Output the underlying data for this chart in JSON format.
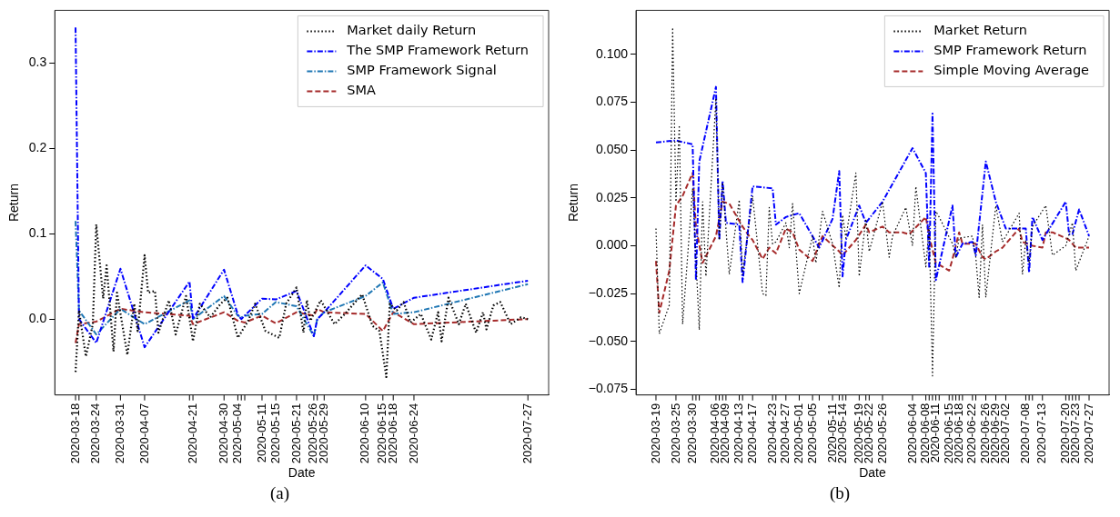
{
  "chart_data": [
    {
      "type": "line",
      "xlabel": "Date",
      "ylabel": "Return",
      "legend": "top right",
      "grid": false,
      "annotations": [
        "(a)"
      ],
      "xlim": [
        "2020-03-12",
        "2020-08-02"
      ],
      "ylim": [
        -0.089,
        0.362
      ],
      "yticks": [
        {
          "value": 0,
          "label": "0.0"
        },
        {
          "value": 0.1,
          "label": "0.1"
        },
        {
          "value": 0.2,
          "label": "0.2"
        },
        {
          "value": 0.3,
          "label": "0.3"
        }
      ],
      "xticks": [
        "2020-03-18",
        {
          "value": "2020-03-19",
          "label": null
        },
        "2020-03-24",
        "2020-03-31",
        "2020-04-07",
        {
          "value": "2020-04-20",
          "label": null
        },
        "2020-04-21",
        "2020-04-30",
        "2020-05-04",
        {
          "value": "2020-05-05",
          "label": null
        },
        {
          "value": "2020-05-06",
          "label": null
        },
        "2020-05-11",
        "2020-05-15",
        "2020-05-21",
        "2020-05-26",
        {
          "value": "2020-05-27",
          "label": null
        },
        "2020-05-29",
        "2020-06-10",
        "2020-06-15",
        "2020-06-18",
        "2020-06-24",
        "2020-07-27"
      ],
      "series": [
        {
          "name": "Market daily Return",
          "color": "#000000",
          "line_style": "dotted",
          "x": [
            "2020-03-18",
            "2020-03-19",
            "2020-03-21",
            "2020-03-23",
            "2020-03-24",
            "2020-03-26",
            "2020-03-27",
            "2020-03-29",
            "2020-03-30",
            "2020-04-02",
            "2020-04-04",
            "2020-04-05",
            "2020-04-07",
            "2020-04-08",
            "2020-04-10",
            "2020-04-11",
            "2020-04-14",
            "2020-04-16",
            "2020-04-19",
            "2020-04-21",
            "2020-04-23",
            "2020-04-26",
            "2020-04-29",
            "2020-05-01",
            "2020-05-04",
            "2020-05-07",
            "2020-05-09",
            "2020-05-12",
            "2020-05-16",
            "2020-05-18",
            "2020-05-21",
            "2020-05-23",
            "2020-05-24",
            "2020-05-25",
            "2020-05-28",
            "2020-05-30",
            "2020-06-01",
            "2020-06-04",
            "2020-06-07",
            "2020-06-09",
            "2020-06-12",
            "2020-06-14",
            "2020-06-16",
            "2020-06-17",
            "2020-06-19",
            "2020-06-21",
            "2020-06-23",
            "2020-06-26",
            "2020-06-29",
            "2020-07-01",
            "2020-07-02",
            "2020-07-04",
            "2020-07-07",
            "2020-07-09",
            "2020-07-12",
            "2020-07-14",
            "2020-07-15",
            "2020-07-17",
            "2020-07-19",
            "2020-07-22",
            "2020-07-25",
            "2020-07-27"
          ],
          "values": [
            -0.062,
            0.01,
            -0.044,
            -0.006,
            0.111,
            0.024,
            0.063,
            -0.038,
            0.031,
            -0.042,
            0.018,
            -0.014,
            0.075,
            0.031,
            0.033,
            -0.016,
            0.022,
            -0.018,
            0.027,
            -0.026,
            0.018,
            0.002,
            0.018,
            0.025,
            -0.022,
            -0.002,
            0.018,
            -0.014,
            -0.022,
            0.018,
            0.037,
            -0.016,
            0.022,
            -0.002,
            0.022,
            0.008,
            -0.006,
            0.006,
            0.02,
            0.029,
            -0.008,
            -0.014,
            -0.068,
            0.018,
            0.01,
            0.02,
            -0.004,
            0.006,
            -0.024,
            0.008,
            -0.026,
            0.025,
            -0.006,
            0.018,
            -0.016,
            0.008,
            -0.012,
            0.016,
            0.02,
            -0.006,
            0.002,
            0.0
          ]
        },
        {
          "name": "The SMP Framework Return",
          "color": "#0000ff",
          "line_style": "dashdot",
          "x": [
            "2020-03-18",
            "2020-03-19",
            "2020-03-24",
            "2020-03-31",
            "2020-04-07",
            "2020-04-20",
            "2020-04-21",
            "2020-04-30",
            "2020-05-04",
            "2020-05-05",
            "2020-05-06",
            "2020-05-11",
            "2020-05-15",
            "2020-05-21",
            "2020-05-26",
            "2020-05-27",
            "2020-05-29",
            "2020-06-10",
            "2020-06-15",
            "2020-06-18",
            "2020-06-24",
            "2020-07-27"
          ],
          "values": [
            0.342,
            0.0,
            -0.028,
            0.059,
            -0.033,
            0.044,
            0.0,
            0.058,
            0.005,
            0.0,
            0.004,
            0.024,
            0.023,
            0.033,
            -0.02,
            0.0,
            0.008,
            0.063,
            0.047,
            0.012,
            0.025,
            0.045
          ]
        },
        {
          "name": "SMP Framework Signal",
          "color": "#1f77b4",
          "line_style": "dashdot",
          "x": [
            "2020-03-18",
            "2020-03-19",
            "2020-03-24",
            "2020-03-31",
            "2020-04-07",
            "2020-04-20",
            "2020-04-21",
            "2020-04-30",
            "2020-05-04",
            "2020-05-05",
            "2020-05-06",
            "2020-05-11",
            "2020-05-15",
            "2020-05-21",
            "2020-05-26",
            "2020-05-27",
            "2020-05-29",
            "2020-06-10",
            "2020-06-15",
            "2020-06-18",
            "2020-06-24",
            "2020-07-27"
          ],
          "values": [
            0.115,
            0.01,
            -0.018,
            0.012,
            -0.006,
            0.022,
            0.0,
            0.027,
            0.004,
            0.002,
            0.004,
            0.006,
            0.02,
            0.015,
            -0.02,
            0.0,
            0.008,
            0.027,
            0.043,
            0.006,
            0.008,
            0.041
          ]
        },
        {
          "name": "SMA",
          "color": "#a52a2a",
          "line_style": "dashed",
          "x": [
            "2020-03-18",
            "2020-03-19",
            "2020-03-24",
            "2020-03-31",
            "2020-04-07",
            "2020-04-20",
            "2020-04-21",
            "2020-04-30",
            "2020-05-04",
            "2020-05-06",
            "2020-05-11",
            "2020-05-15",
            "2020-05-21",
            "2020-05-26",
            "2020-05-27",
            "2020-05-29",
            "2020-06-10",
            "2020-06-15",
            "2020-06-18",
            "2020-06-24",
            "2020-07-27"
          ],
          "values": [
            -0.028,
            -0.006,
            -0.003,
            0.012,
            0.008,
            0.004,
            -0.006,
            0.008,
            -0.002,
            -0.004,
            0.004,
            -0.005,
            0.008,
            0.004,
            0.012,
            0.008,
            0.006,
            -0.014,
            0.008,
            -0.006,
            0.0
          ]
        }
      ]
    },
    {
      "type": "line",
      "xlabel": "Date",
      "ylabel": "Return",
      "legend": "top right",
      "grid": false,
      "annotations": [
        "(b)"
      ],
      "xlim": [
        "2020-03-13",
        "2020-08-02"
      ],
      "ylim": [
        -0.078,
        0.123
      ],
      "yticks": [
        {
          "value": -0.075,
          "label": "−0.075"
        },
        {
          "value": -0.05,
          "label": "−0.050"
        },
        {
          "value": -0.025,
          "label": "−0.025"
        },
        {
          "value": 0,
          "label": "0.000"
        },
        {
          "value": 0.025,
          "label": "0.025"
        },
        {
          "value": 0.05,
          "label": "0.050"
        },
        {
          "value": 0.075,
          "label": "0.075"
        },
        {
          "value": 0.1,
          "label": "0.100"
        }
      ],
      "xticks": [
        "2020-03-19",
        "2020-03-25",
        "2020-03-30",
        {
          "value": "2020-03-31",
          "label": null
        },
        {
          "value": "2020-04-01",
          "label": null
        },
        "2020-04-06",
        {
          "value": "2020-04-07",
          "label": null
        },
        {
          "value": "2020-04-08",
          "label": null
        },
        "2020-04-09",
        "2020-04-13",
        {
          "value": "2020-04-14",
          "label": null
        },
        "2020-04-17",
        "2020-04-23",
        {
          "value": "2020-04-24",
          "label": null
        },
        "2020-04-27",
        "2020-05-01",
        "2020-05-05",
        {
          "value": "2020-05-07",
          "label": null
        },
        "2020-05-11",
        {
          "value": "2020-05-13",
          "label": null
        },
        "2020-05-14",
        {
          "value": "2020-05-15",
          "label": null
        },
        "2020-05-19",
        {
          "value": "2020-05-21",
          "label": null
        },
        "2020-05-22",
        "2020-05-26",
        "2020-06-04",
        "2020-06-08",
        {
          "value": "2020-06-09",
          "label": null
        },
        {
          "value": "2020-06-10",
          "label": null
        },
        "2020-06-11",
        {
          "value": "2020-06-12",
          "label": null
        },
        "2020-06-15",
        {
          "value": "2020-06-16",
          "label": null
        },
        {
          "value": "2020-06-17",
          "label": null
        },
        "2020-06-18",
        {
          "value": "2020-06-19",
          "label": null
        },
        "2020-06-22",
        {
          "value": "2020-06-23",
          "label": null
        },
        "2020-06-26",
        "2020-06-29",
        "2020-07-02",
        "2020-07-08",
        {
          "value": "2020-07-09",
          "label": null
        },
        {
          "value": "2020-07-10",
          "label": null
        },
        "2020-07-13",
        "2020-07-20",
        {
          "value": "2020-07-21",
          "label": null
        },
        {
          "value": "2020-07-22",
          "label": null
        },
        "2020-07-23",
        {
          "value": "2020-07-24",
          "label": null
        },
        "2020-07-27"
      ],
      "series": [
        {
          "name": "Market Return",
          "color": "#000000",
          "line_style": "dotted",
          "x": [
            "2020-03-19",
            "2020-03-20",
            "2020-03-23",
            "2020-03-24",
            "2020-03-25",
            "2020-03-26",
            "2020-03-27",
            "2020-03-30",
            "2020-04-01",
            "2020-04-02",
            "2020-04-03",
            "2020-04-06",
            "2020-04-07",
            "2020-04-08",
            "2020-04-10",
            "2020-04-13",
            "2020-04-14",
            "2020-04-17",
            "2020-04-20",
            "2020-04-21",
            "2020-04-22",
            "2020-04-23",
            "2020-04-24",
            "2020-04-27",
            "2020-04-28",
            "2020-04-29",
            "2020-05-01",
            "2020-05-05",
            "2020-05-06",
            "2020-05-08",
            "2020-05-11",
            "2020-05-13",
            "2020-05-14",
            "2020-05-15",
            "2020-05-18",
            "2020-05-19",
            "2020-05-21",
            "2020-05-22",
            "2020-05-26",
            "2020-05-28",
            "2020-05-29",
            "2020-06-02",
            "2020-06-04",
            "2020-06-05",
            "2020-06-08",
            "2020-06-09",
            "2020-06-10",
            "2020-06-11",
            "2020-06-12",
            "2020-06-16",
            "2020-06-17",
            "2020-06-18",
            "2020-06-22",
            "2020-06-23",
            "2020-06-24",
            "2020-06-25",
            "2020-06-26",
            "2020-06-29",
            "2020-07-01",
            "2020-07-06",
            "2020-07-07",
            "2020-07-08",
            "2020-07-09",
            "2020-07-10",
            "2020-07-14",
            "2020-07-16",
            "2020-07-20",
            "2020-07-22",
            "2020-07-23",
            "2020-07-27"
          ],
          "values": [
            0.009,
            -0.046,
            -0.031,
            0.114,
            0.023,
            0.063,
            -0.041,
            0.03,
            -0.044,
            0.023,
            -0.016,
            0.077,
            0.003,
            0.033,
            -0.015,
            0.024,
            -0.015,
            0.026,
            -0.025,
            -0.026,
            0.02,
            0.001,
            0.002,
            0.012,
            -0.001,
            0.022,
            -0.025,
            0.005,
            -0.009,
            0.018,
            0.001,
            -0.022,
            0.016,
            0.004,
            0.038,
            -0.016,
            0.014,
            -0.003,
            0.023,
            -0.006,
            0.005,
            0.02,
            0.0,
            0.031,
            -0.011,
            0.01,
            -0.068,
            0.018,
            0.015,
            0.001,
            -0.006,
            0.004,
            0.005,
            -0.006,
            -0.027,
            0.011,
            -0.027,
            0.021,
            0.002,
            0.017,
            -0.015,
            0.003,
            -0.009,
            0.01,
            0.021,
            -0.005,
            0.0,
            0.012,
            -0.013,
            0.005
          ]
        },
        {
          "name": "SMP Framework Return",
          "color": "#0000ff",
          "line_style": "dashdot",
          "x": [
            "2020-03-19",
            "2020-03-25",
            "2020-03-30",
            "2020-03-31",
            "2020-04-01",
            "2020-04-06",
            "2020-04-07",
            "2020-04-08",
            "2020-04-09",
            "2020-04-13",
            "2020-04-14",
            "2020-04-17",
            "2020-04-23",
            "2020-04-24",
            "2020-04-27",
            "2020-05-01",
            "2020-05-05",
            "2020-05-07",
            "2020-05-11",
            "2020-05-13",
            "2020-05-14",
            "2020-05-15",
            "2020-05-19",
            "2020-05-21",
            "2020-05-26",
            "2020-06-04",
            "2020-06-08",
            "2020-06-09",
            "2020-06-10",
            "2020-06-11",
            "2020-06-16",
            "2020-06-17",
            "2020-06-19",
            "2020-06-22",
            "2020-06-23",
            "2020-06-26",
            "2020-06-29",
            "2020-07-02",
            "2020-07-08",
            "2020-07-09",
            "2020-07-10",
            "2020-07-13",
            "2020-07-20",
            "2020-07-21",
            "2020-07-22",
            "2020-07-24",
            "2020-07-27"
          ],
          "values": [
            0.054,
            0.055,
            0.053,
            -0.018,
            0.044,
            0.083,
            0.003,
            0.034,
            0.012,
            0.011,
            -0.019,
            0.031,
            0.03,
            0.011,
            0.015,
            0.017,
            0.005,
            -0.001,
            0.014,
            0.039,
            -0.016,
            0.003,
            0.021,
            0.012,
            0.023,
            0.051,
            0.038,
            -0.011,
            0.069,
            -0.018,
            0.021,
            -0.006,
            0.001,
            0.002,
            -0.005,
            0.044,
            0.023,
            0.009,
            0.009,
            -0.014,
            0.015,
            0.003,
            0.023,
            0.006,
            0.006,
            0.019,
            0.005
          ]
        },
        {
          "name": "Simple Moving Average",
          "color": "#a52a2a",
          "line_style": "dashed",
          "x": [
            "2020-03-19",
            "2020-03-20",
            "2020-03-23",
            "2020-03-25",
            "2020-03-27",
            "2020-03-30",
            "2020-03-31",
            "2020-04-02",
            "2020-04-06",
            "2020-04-08",
            "2020-04-10",
            "2020-04-14",
            "2020-04-16",
            "2020-04-17",
            "2020-04-20",
            "2020-04-22",
            "2020-04-24",
            "2020-04-27",
            "2020-04-29",
            "2020-05-01",
            "2020-05-05",
            "2020-05-08",
            "2020-05-13",
            "2020-05-14",
            "2020-05-18",
            "2020-05-21",
            "2020-05-22",
            "2020-05-26",
            "2020-05-28",
            "2020-06-01",
            "2020-06-03",
            "2020-06-08",
            "2020-06-09",
            "2020-06-11",
            "2020-06-15",
            "2020-06-16",
            "2020-06-18",
            "2020-06-19",
            "2020-06-23",
            "2020-06-25",
            "2020-06-26",
            "2020-06-29",
            "2020-07-01",
            "2020-07-06",
            "2020-07-07",
            "2020-07-10",
            "2020-07-13",
            "2020-07-14",
            "2020-07-16",
            "2020-07-20",
            "2020-07-21",
            "2020-07-23",
            "2020-07-27"
          ],
          "values": [
            -0.008,
            -0.035,
            -0.013,
            0.021,
            0.026,
            0.038,
            0.01,
            -0.009,
            0.005,
            0.023,
            0.022,
            0.01,
            0.005,
            0.003,
            -0.007,
            -0.001,
            -0.004,
            0.009,
            0.007,
            -0.002,
            -0.008,
            0.005,
            -0.003,
            -0.005,
            0.003,
            0.011,
            0.007,
            0.01,
            0.007,
            0.007,
            0.006,
            0.015,
            0.005,
            -0.009,
            -0.013,
            -0.007,
            0.007,
            0.001,
            0.001,
            -0.006,
            -0.007,
            -0.003,
            -0.001,
            0.009,
            0.002,
            0.0,
            -0.001,
            0.007,
            0.007,
            0.004,
            0.003,
            -0.001,
            -0.001
          ]
        }
      ]
    }
  ]
}
